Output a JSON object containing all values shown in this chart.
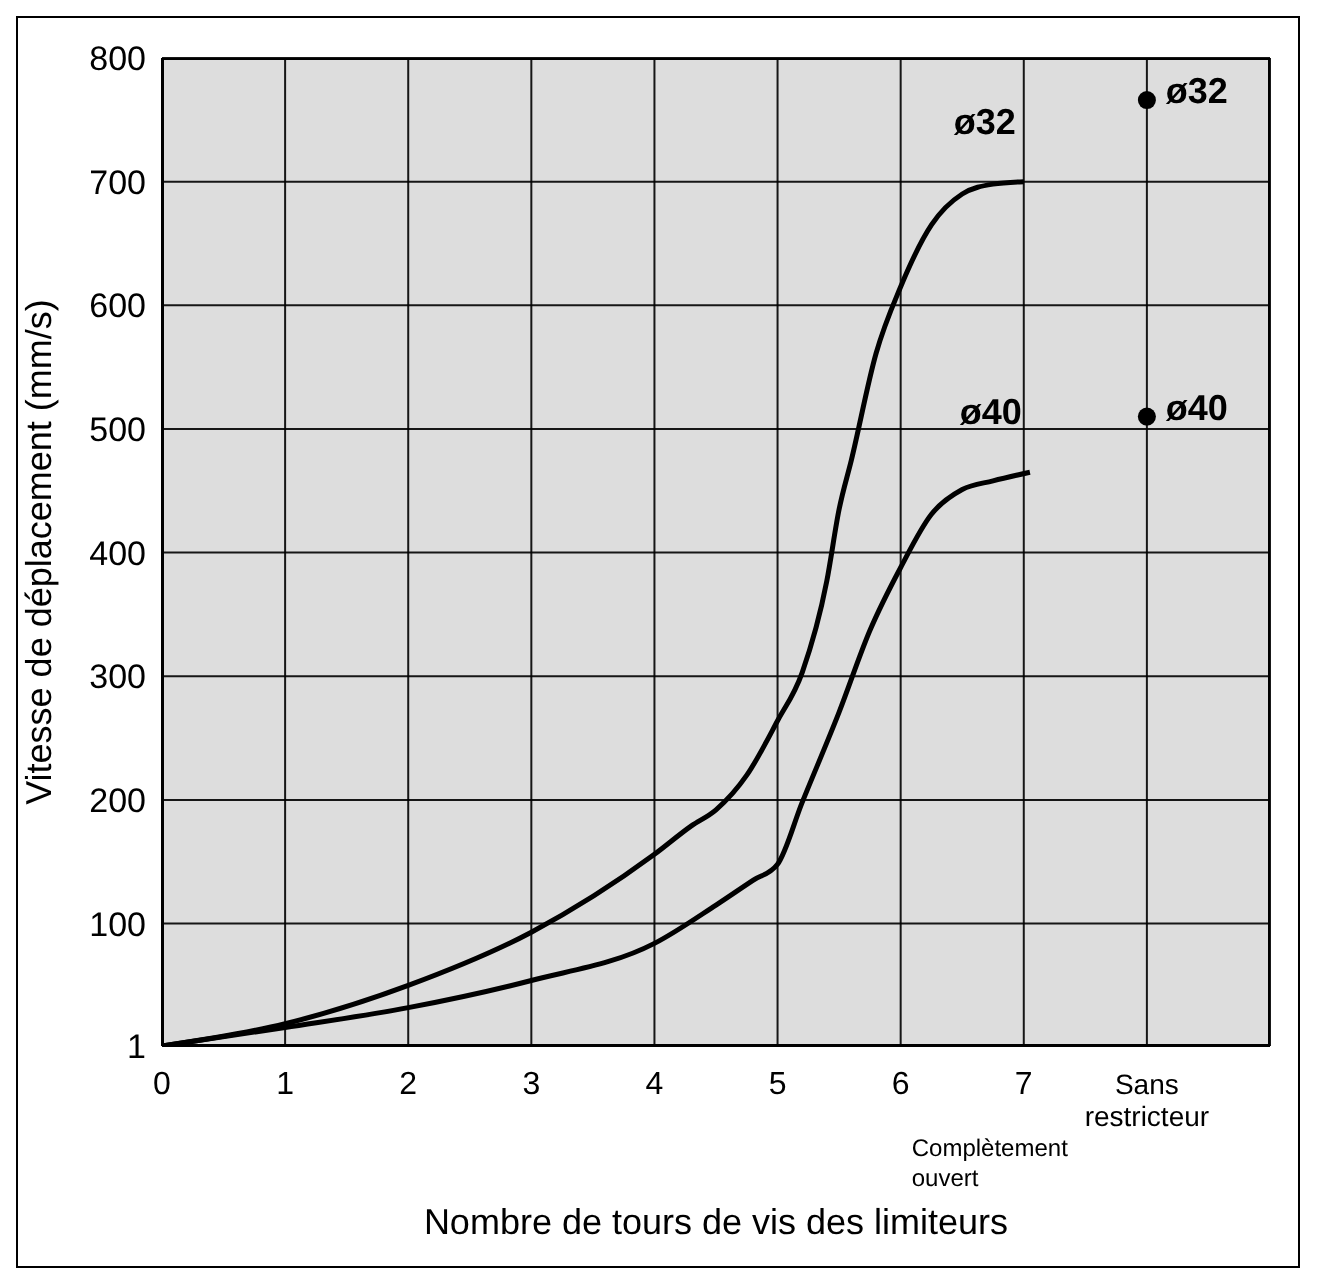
{
  "chart_data": {
    "type": "line",
    "xlabel": "Nombre de tours de vis des limiteurs",
    "ylabel": "Vitesse de déplacement (mm/s)",
    "xlim": [
      0,
      9
    ],
    "xticks": [
      0,
      1,
      2,
      3,
      4,
      5,
      6,
      7,
      {
        "value": 8,
        "label": "Sans restricteur"
      }
    ],
    "ylim": [
      1,
      800
    ],
    "yticks": [
      1,
      100,
      200,
      300,
      400,
      500,
      600,
      700,
      800
    ],
    "grid": true,
    "marker": "none",
    "line_style": "solid",
    "annotations": [
      "Complètement ouvert"
    ],
    "series": [
      {
        "name": "ø32",
        "color": "#000000",
        "x": [
          0,
          1,
          2,
          3,
          4,
          4.3,
          4.5,
          4.75,
          5,
          5.2,
          5.4,
          5.5,
          5.6,
          5.8,
          6,
          6.25,
          6.5,
          6.75,
          7
        ],
        "values": [
          1,
          19,
          50,
          93,
          156,
          179,
          192,
          220,
          264,
          303,
          377,
          435,
          475,
          561,
          615,
          665,
          690,
          698,
          700
        ]
      },
      {
        "name": "ø40",
        "color": "#000000",
        "x": [
          0,
          1,
          2,
          3,
          4,
          4.5,
          4.8,
          5,
          5.2,
          5.5,
          5.75,
          6,
          6.25,
          6.5,
          6.75,
          7.05
        ],
        "values": [
          1,
          16,
          32,
          54,
          84,
          115,
          135,
          148,
          198,
          271,
          337,
          388,
          431,
          451,
          458,
          465
        ]
      },
      {
        "name": "ø32",
        "type": "scatter",
        "marker": "circle",
        "color": "#000000",
        "x": [
          8
        ],
        "values": [
          766
        ]
      },
      {
        "name": "ø40",
        "type": "scatter",
        "marker": "circle",
        "color": "#000000",
        "x": [
          8
        ],
        "values": [
          510
        ]
      }
    ]
  }
}
